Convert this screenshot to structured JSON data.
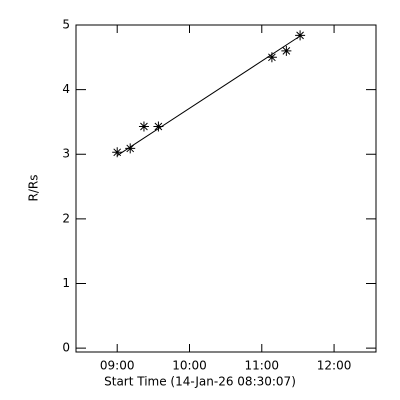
{
  "chart_data": {
    "type": "scatter",
    "x_label": "Start Time (14-Jan-26 08:30:07)",
    "y_label": "R/Rs",
    "xlim": [
      8.43,
      12.58
    ],
    "xticks": [
      {
        "value": 9,
        "label": "09:00"
      },
      {
        "value": 10,
        "label": "10:00"
      },
      {
        "value": 11,
        "label": "11:00"
      },
      {
        "value": 12,
        "label": "12:00"
      }
    ],
    "ylim": [
      -0.06,
      5
    ],
    "yticks": [
      0,
      1,
      2,
      3,
      4,
      5
    ],
    "color": "#000000",
    "series": [
      {
        "marker": "asterisk",
        "x": [
          9.0,
          9.18,
          9.37,
          9.57,
          11.14,
          11.34,
          11.53
        ],
        "values": [
          3.03,
          3.09,
          3.43,
          3.43,
          4.5,
          4.6,
          4.84
        ]
      },
      {
        "marker": "line",
        "x": [
          9.0,
          11.53
        ],
        "values": [
          2.98,
          4.83
        ]
      }
    ]
  }
}
